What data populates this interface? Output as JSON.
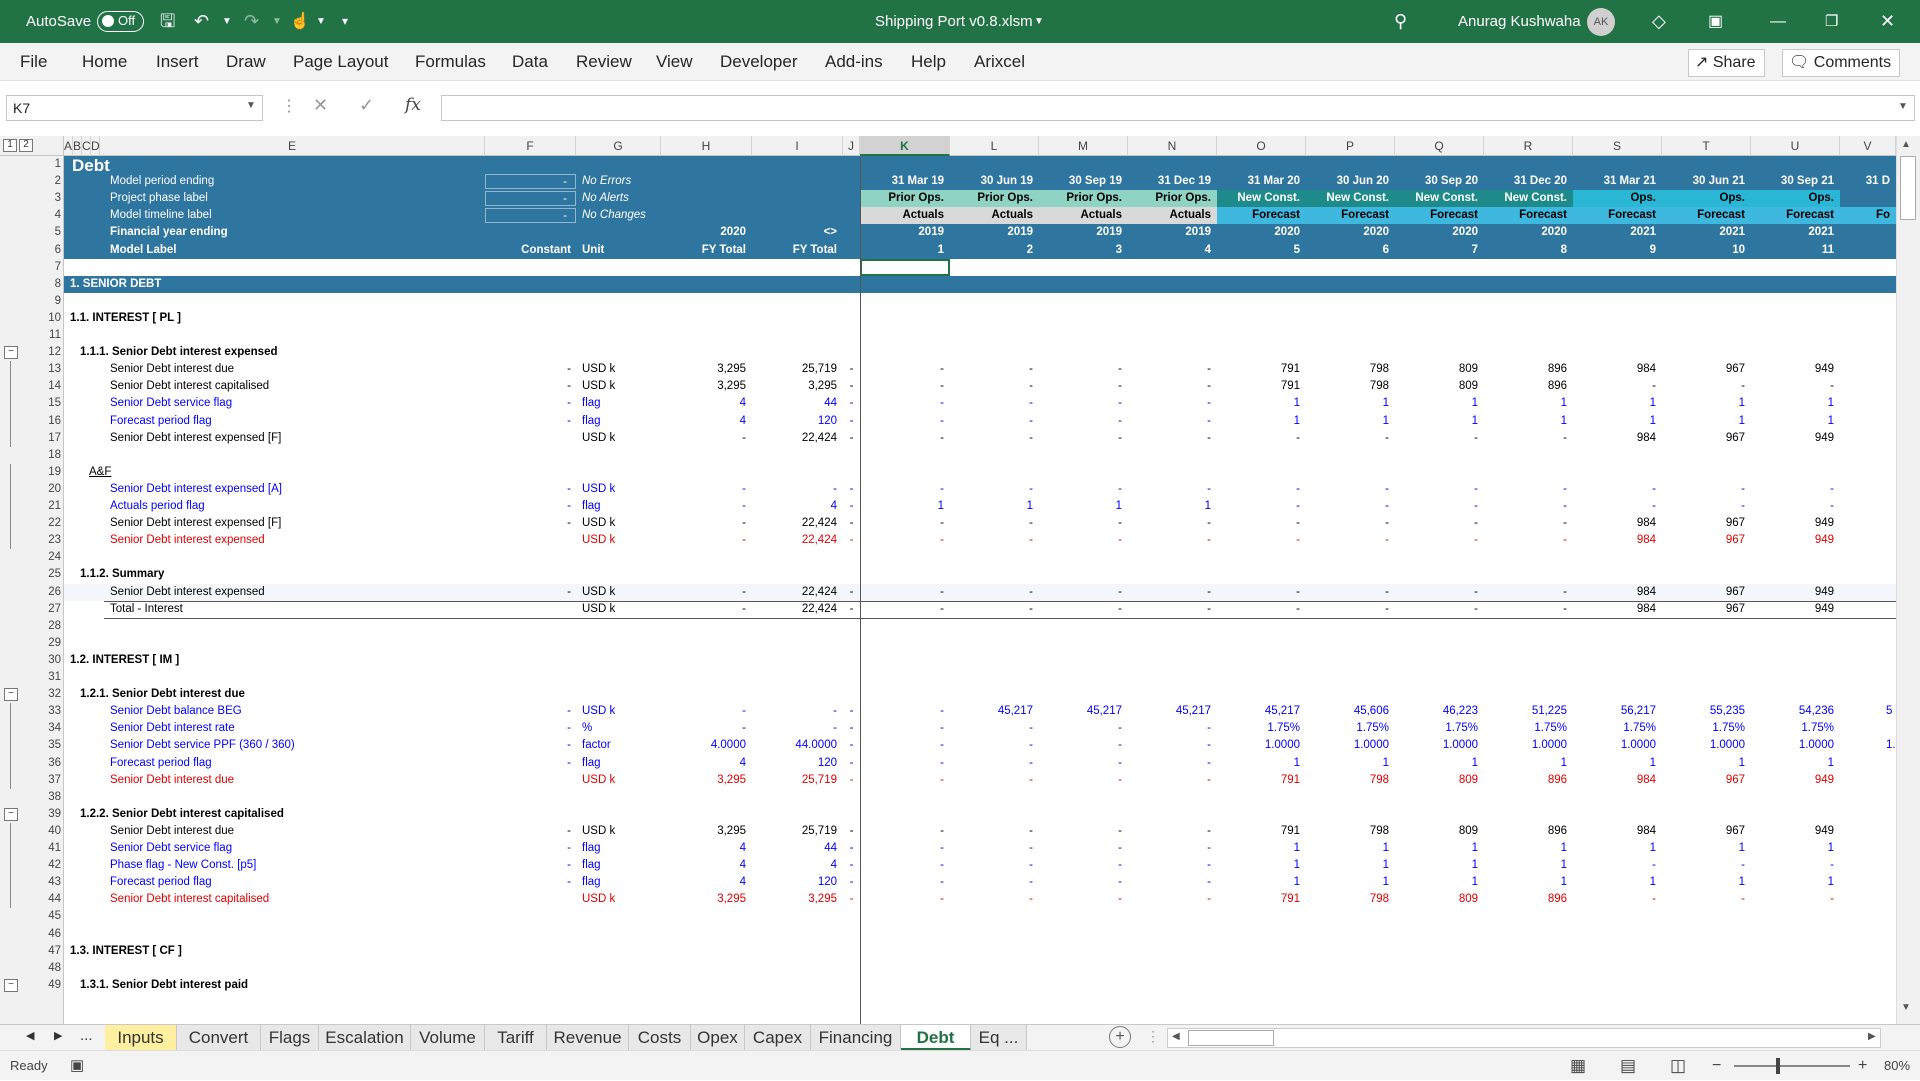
{
  "titlebar": {
    "autosave": "AutoSave",
    "toggle": "Off",
    "filename": "Shipping Port v0.8.xlsm",
    "user": "Anurag Kushwaha",
    "initials": "AK"
  },
  "menu": [
    "File",
    "Home",
    "Insert",
    "Draw",
    "Page Layout",
    "Formulas",
    "Data",
    "Review",
    "View",
    "Developer",
    "Add-ins",
    "Help",
    "Arixcel"
  ],
  "share": "Share",
  "comments": "Comments",
  "namebox": "K7",
  "columns": [
    "A",
    "B",
    "C",
    "D",
    "E",
    "F",
    "G",
    "H",
    "I",
    "J",
    "K",
    "L",
    "M",
    "N",
    "O",
    "P",
    "Q",
    "R",
    "S",
    "T",
    "U",
    "V"
  ],
  "outline_levels": [
    "1",
    "2"
  ],
  "sheet": {
    "title": "Debt",
    "hdr_labels": [
      "Model period ending",
      "Project phase label",
      "Model timeline label",
      "Financial year ending",
      "Model Label"
    ],
    "status": [
      "No Errors",
      "No Alerts",
      "No Changes"
    ],
    "hdr_dash": "-",
    "row5_fy": "2020",
    "row5_i": "<>",
    "row6_f": "Constant",
    "row6_g": "Unit",
    "row6_h": "FY Total",
    "row6_i": "FY Total",
    "dates": [
      "31 Mar 19",
      "30 Jun 19",
      "30 Sep 19",
      "31 Dec 19",
      "31 Mar 20",
      "30 Jun 20",
      "30 Sep 20",
      "31 Dec 20",
      "31 Mar 21",
      "30 Jun 21",
      "30 Sep 21",
      "31 D"
    ],
    "phases": [
      "Prior Ops.",
      "Prior Ops.",
      "Prior Ops.",
      "Prior Ops.",
      "New Const.",
      "New Const.",
      "New Const.",
      "New Const.",
      "Ops.",
      "Ops.",
      "Ops.",
      ""
    ],
    "timeline": [
      "Actuals",
      "Actuals",
      "Actuals",
      "Actuals",
      "Forecast",
      "Forecast",
      "Forecast",
      "Forecast",
      "Forecast",
      "Forecast",
      "Forecast",
      "Fo"
    ],
    "fy": [
      "2019",
      "2019",
      "2019",
      "2019",
      "2020",
      "2020",
      "2020",
      "2020",
      "2021",
      "2021",
      "2021",
      ""
    ],
    "labels": [
      "1",
      "2",
      "3",
      "4",
      "5",
      "6",
      "7",
      "8",
      "9",
      "10",
      "11",
      ""
    ]
  },
  "rows": [
    {
      "n": "7",
      "type": "blank"
    },
    {
      "n": "8",
      "type": "band",
      "label": "1. SENIOR DEBT"
    },
    {
      "n": "9",
      "type": "blank"
    },
    {
      "n": "10",
      "type": "head",
      "label": "1.1. INTEREST [ PL ]",
      "ind": 0
    },
    {
      "n": "11",
      "type": "blank"
    },
    {
      "n": "12",
      "type": "head",
      "label": "1.1.1. Senior Debt interest expensed",
      "ind": 1,
      "btn": "−"
    },
    {
      "n": "13",
      "label": "Senior Debt interest due",
      "f": "-",
      "g": "USD k",
      "h": "3,295",
      "i": "25,719",
      "j": "-",
      "v": [
        "-",
        "-",
        "-",
        "-",
        "791",
        "798",
        "809",
        "896",
        "984",
        "967",
        "949"
      ],
      "color": "k"
    },
    {
      "n": "14",
      "label": "Senior Debt interest capitalised",
      "f": "-",
      "g": "USD k",
      "h": "3,295",
      "i": "3,295",
      "j": "-",
      "v": [
        "-",
        "-",
        "-",
        "-",
        "791",
        "798",
        "809",
        "896",
        "-",
        "-",
        "-"
      ],
      "color": "k"
    },
    {
      "n": "15",
      "label": "Senior Debt service flag",
      "f": "-",
      "g": "flag",
      "h": "4",
      "i": "44",
      "j": "-",
      "v": [
        "-",
        "-",
        "-",
        "-",
        "1",
        "1",
        "1",
        "1",
        "1",
        "1",
        "1"
      ],
      "color": "b"
    },
    {
      "n": "16",
      "label": "Forecast period flag",
      "f": "-",
      "g": "flag",
      "h": "4",
      "i": "120",
      "j": "-",
      "v": [
        "-",
        "-",
        "-",
        "-",
        "1",
        "1",
        "1",
        "1",
        "1",
        "1",
        "1"
      ],
      "color": "b"
    },
    {
      "n": "17",
      "label": "Senior Debt interest expensed [F]",
      "f": "",
      "g": "USD k",
      "h": "-",
      "i": "22,424",
      "j": "-",
      "v": [
        "-",
        "-",
        "-",
        "-",
        "-",
        "-",
        "-",
        "-",
        "984",
        "967",
        "949"
      ],
      "color": "k"
    },
    {
      "n": "18",
      "type": "blank"
    },
    {
      "n": "19",
      "type": "af",
      "label": "A&F"
    },
    {
      "n": "20",
      "label": "Senior Debt interest expensed [A]",
      "f": "-",
      "g": "USD k",
      "h": "-",
      "i": "-",
      "j": "-",
      "v": [
        "-",
        "-",
        "-",
        "-",
        "-",
        "-",
        "-",
        "-",
        "-",
        "-",
        "-"
      ],
      "color": "b"
    },
    {
      "n": "21",
      "label": "Actuals period flag",
      "f": "-",
      "g": "flag",
      "h": "-",
      "i": "4",
      "j": "-",
      "v": [
        "1",
        "1",
        "1",
        "1",
        "-",
        "-",
        "-",
        "-",
        "-",
        "-",
        "-"
      ],
      "color": "b"
    },
    {
      "n": "22",
      "label": "Senior Debt interest expensed [F]",
      "f": "-",
      "g": "USD k",
      "h": "-",
      "i": "22,424",
      "j": "-",
      "v": [
        "-",
        "-",
        "-",
        "-",
        "-",
        "-",
        "-",
        "-",
        "984",
        "967",
        "949"
      ],
      "color": "k"
    },
    {
      "n": "23",
      "label": "Senior Debt interest expensed",
      "f": "",
      "g": "USD k",
      "h": "-",
      "i": "22,424",
      "j": "-",
      "v": [
        "-",
        "-",
        "-",
        "-",
        "-",
        "-",
        "-",
        "-",
        "984",
        "967",
        "949"
      ],
      "color": "r"
    },
    {
      "n": "24",
      "type": "blank"
    },
    {
      "n": "25",
      "type": "head",
      "label": "1.1.2. Summary",
      "ind": 1
    },
    {
      "n": "26",
      "label": "Senior Debt interest expensed",
      "f": "-",
      "g": "USD k",
      "h": "-",
      "i": "22,424",
      "j": "-",
      "v": [
        "-",
        "-",
        "-",
        "-",
        "-",
        "-",
        "-",
        "-",
        "984",
        "967",
        "949"
      ],
      "color": "k",
      "shade": true
    },
    {
      "n": "27",
      "label": "Total - Interest",
      "f": "",
      "g": "USD k",
      "h": "-",
      "i": "22,424",
      "j": "-",
      "v": [
        "-",
        "-",
        "-",
        "-",
        "-",
        "-",
        "-",
        "-",
        "984",
        "967",
        "949"
      ],
      "color": "k",
      "total": true
    },
    {
      "n": "28",
      "type": "blank"
    },
    {
      "n": "29",
      "type": "blank"
    },
    {
      "n": "30",
      "type": "head",
      "label": "1.2. INTEREST [ IM ]",
      "ind": 0
    },
    {
      "n": "31",
      "type": "blank"
    },
    {
      "n": "32",
      "type": "head",
      "label": "1.2.1. Senior Debt interest due",
      "ind": 1,
      "btn": "−"
    },
    {
      "n": "33",
      "label": "Senior Debt balance BEG",
      "f": "-",
      "g": "USD k",
      "h": "-",
      "i": "-",
      "j": "-",
      "v": [
        "-",
        "45,217",
        "45,217",
        "45,217",
        "45,217",
        "45,606",
        "46,223",
        "51,225",
        "56,217",
        "55,235",
        "54,236"
      ],
      "color": "b",
      "extra": "5"
    },
    {
      "n": "34",
      "label": "Senior Debt interest rate",
      "f": "-",
      "g": "%",
      "h": "-",
      "i": "-",
      "j": "-",
      "v": [
        "-",
        "-",
        "-",
        "-",
        "1.75%",
        "1.75%",
        "1.75%",
        "1.75%",
        "1.75%",
        "1.75%",
        "1.75%"
      ],
      "color": "b"
    },
    {
      "n": "35",
      "label": "Senior Debt service PPF (360 / 360)",
      "f": "-",
      "g": "factor",
      "h": "4.0000",
      "i": "44.0000",
      "j": "-",
      "v": [
        "-",
        "-",
        "-",
        "-",
        "1.0000",
        "1.0000",
        "1.0000",
        "1.0000",
        "1.0000",
        "1.0000",
        "1.0000"
      ],
      "color": "b",
      "extra": "1."
    },
    {
      "n": "36",
      "label": "Forecast period flag",
      "f": "-",
      "g": "flag",
      "h": "4",
      "i": "120",
      "j": "-",
      "v": [
        "-",
        "-",
        "-",
        "-",
        "1",
        "1",
        "1",
        "1",
        "1",
        "1",
        "1"
      ],
      "color": "b"
    },
    {
      "n": "37",
      "label": "Senior Debt interest due",
      "f": "",
      "g": "USD k",
      "h": "3,295",
      "i": "25,719",
      "j": "-",
      "v": [
        "-",
        "-",
        "-",
        "-",
        "791",
        "798",
        "809",
        "896",
        "984",
        "967",
        "949"
      ],
      "color": "r"
    },
    {
      "n": "38",
      "type": "blank"
    },
    {
      "n": "39",
      "type": "head",
      "label": "1.2.2. Senior Debt interest capitalised",
      "ind": 1,
      "btn": "−"
    },
    {
      "n": "40",
      "label": "Senior Debt interest due",
      "f": "-",
      "g": "USD k",
      "h": "3,295",
      "i": "25,719",
      "j": "-",
      "v": [
        "-",
        "-",
        "-",
        "-",
        "791",
        "798",
        "809",
        "896",
        "984",
        "967",
        "949"
      ],
      "color": "k"
    },
    {
      "n": "41",
      "label": "Senior Debt service flag",
      "f": "-",
      "g": "flag",
      "h": "4",
      "i": "44",
      "j": "-",
      "v": [
        "-",
        "-",
        "-",
        "-",
        "1",
        "1",
        "1",
        "1",
        "1",
        "1",
        "1"
      ],
      "color": "b"
    },
    {
      "n": "42",
      "label": "Phase flag - New Const. [p5]",
      "f": "-",
      "g": "flag",
      "h": "4",
      "i": "4",
      "j": "-",
      "v": [
        "-",
        "-",
        "-",
        "-",
        "1",
        "1",
        "1",
        "1",
        "-",
        "-",
        "-"
      ],
      "color": "b"
    },
    {
      "n": "43",
      "label": "Forecast period flag",
      "f": "-",
      "g": "flag",
      "h": "4",
      "i": "120",
      "j": "-",
      "v": [
        "-",
        "-",
        "-",
        "-",
        "1",
        "1",
        "1",
        "1",
        "1",
        "1",
        "1"
      ],
      "color": "b"
    },
    {
      "n": "44",
      "label": "Senior Debt interest capitalised",
      "f": "",
      "g": "USD k",
      "h": "3,295",
      "i": "3,295",
      "j": "-",
      "v": [
        "-",
        "-",
        "-",
        "-",
        "791",
        "798",
        "809",
        "896",
        "-",
        "-",
        "-"
      ],
      "color": "r"
    },
    {
      "n": "45",
      "type": "blank"
    },
    {
      "n": "46",
      "type": "blank"
    },
    {
      "n": "47",
      "type": "head",
      "label": "1.3. INTEREST [ CF ]",
      "ind": 0
    },
    {
      "n": "48",
      "type": "blank"
    },
    {
      "n": "49",
      "type": "head",
      "label": "1.3.1. Senior Debt interest paid",
      "ind": 1,
      "btn": "−"
    }
  ],
  "tabs": [
    "Inputs",
    "Convert",
    "Flags",
    "Escalation",
    "Volume",
    "Tariff",
    "Revenue",
    "Costs",
    "Opex",
    "Capex",
    "Financing",
    "Debt",
    "Eq ..."
  ],
  "tab_more": "...",
  "status": {
    "ready": "Ready",
    "zoom": "80%"
  },
  "colors": {
    "excel_green": "#217346",
    "band_blue": "#2e75a0",
    "input_blue": "#0000ff",
    "calc_red": "#e00000"
  }
}
